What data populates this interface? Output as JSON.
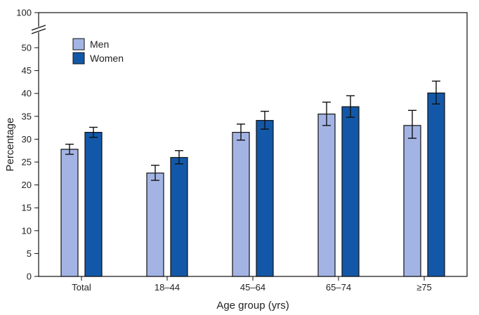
{
  "colors": {
    "men": "#a3b4e4",
    "women": "#1358a8",
    "stroke": "#111111"
  },
  "chart_data": {
    "type": "bar",
    "categories": [
      "Total",
      "18–44",
      "45–64",
      "65–74",
      "≥75"
    ],
    "series": [
      {
        "name": "Men",
        "values": [
          27.8,
          22.6,
          31.5,
          35.5,
          33.0
        ],
        "error_low": [
          26.7,
          21.0,
          29.8,
          33.0,
          30.2
        ],
        "error_high": [
          28.9,
          24.3,
          33.3,
          38.1,
          36.3
        ]
      },
      {
        "name": "Women",
        "values": [
          31.5,
          26.0,
          34.1,
          37.1,
          40.1
        ],
        "error_low": [
          30.4,
          24.6,
          32.2,
          34.8,
          37.7
        ],
        "error_high": [
          32.6,
          27.5,
          36.1,
          39.5,
          42.7
        ]
      }
    ],
    "xlabel": "Age group (yrs)",
    "ylabel": "Percentage",
    "ylim": [
      0,
      100
    ],
    "axis_break": [
      52,
      98
    ],
    "yticks": [
      0,
      5,
      10,
      15,
      20,
      25,
      30,
      35,
      40,
      45,
      50,
      100
    ],
    "legend_position": "top-left",
    "grid": false
  }
}
